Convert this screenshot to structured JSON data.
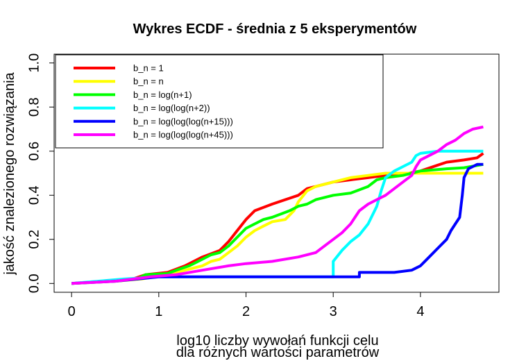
{
  "chart_data": {
    "type": "line",
    "title": "Wykres ECDF - średnia z 5 eksperymentów",
    "xlabel_line1": "log10 liczby wywołań funkcji celu",
    "xlabel_line2": "dla różnych wartości parametrów",
    "ylabel": "jakość znalezionego rozwiązania",
    "xlim": [
      -0.2,
      4.9
    ],
    "ylim": [
      -0.04,
      1.04
    ],
    "xticks": [
      {
        "value": 0,
        "label": "0"
      },
      {
        "value": 1,
        "label": "1"
      },
      {
        "value": 2,
        "label": "2"
      },
      {
        "value": 3,
        "label": "3"
      },
      {
        "value": 4,
        "label": "4"
      }
    ],
    "yticks": [
      {
        "value": 0.0,
        "label": "0.0"
      },
      {
        "value": 0.2,
        "label": "0.2"
      },
      {
        "value": 0.4,
        "label": "0.4"
      },
      {
        "value": 0.6,
        "label": "0.6"
      },
      {
        "value": 0.8,
        "label": "0.8"
      },
      {
        "value": 1.0,
        "label": "1.0"
      }
    ],
    "grid": false,
    "legend_position": "top-left",
    "series": [
      {
        "name": "b_n = 1",
        "color": "#ff0000",
        "points": [
          [
            0,
            0
          ],
          [
            0.4,
            0.01
          ],
          [
            0.7,
            0.02
          ],
          [
            0.85,
            0.04
          ],
          [
            1.1,
            0.05
          ],
          [
            1.3,
            0.08
          ],
          [
            1.5,
            0.12
          ],
          [
            1.7,
            0.15
          ],
          [
            1.8,
            0.19
          ],
          [
            1.9,
            0.24
          ],
          [
            2.0,
            0.29
          ],
          [
            2.1,
            0.33
          ],
          [
            2.3,
            0.36
          ],
          [
            2.45,
            0.38
          ],
          [
            2.6,
            0.4
          ],
          [
            2.7,
            0.43
          ],
          [
            2.8,
            0.44
          ],
          [
            3.0,
            0.46
          ],
          [
            3.2,
            0.47
          ],
          [
            3.4,
            0.48
          ],
          [
            3.6,
            0.49
          ],
          [
            3.8,
            0.495
          ],
          [
            4.0,
            0.51
          ],
          [
            4.3,
            0.55
          ],
          [
            4.5,
            0.56
          ],
          [
            4.65,
            0.57
          ],
          [
            4.72,
            0.59
          ]
        ]
      },
      {
        "name": "b_n = n",
        "color": "#ffff00",
        "points": [
          [
            0,
            0
          ],
          [
            0.5,
            0.01
          ],
          [
            0.8,
            0.02
          ],
          [
            1.1,
            0.04
          ],
          [
            1.3,
            0.06
          ],
          [
            1.5,
            0.08
          ],
          [
            1.6,
            0.1
          ],
          [
            1.7,
            0.11
          ],
          [
            1.8,
            0.14
          ],
          [
            1.9,
            0.17
          ],
          [
            2.0,
            0.21
          ],
          [
            2.1,
            0.24
          ],
          [
            2.2,
            0.26
          ],
          [
            2.3,
            0.28
          ],
          [
            2.45,
            0.29
          ],
          [
            2.55,
            0.33
          ],
          [
            2.6,
            0.37
          ],
          [
            2.7,
            0.42
          ],
          [
            2.8,
            0.44
          ],
          [
            3.0,
            0.46
          ],
          [
            3.2,
            0.48
          ],
          [
            3.4,
            0.49
          ],
          [
            3.6,
            0.5
          ],
          [
            4.0,
            0.5
          ],
          [
            4.72,
            0.5
          ]
        ]
      },
      {
        "name": "b_n = log(n+1)",
        "color": "#00ff00",
        "points": [
          [
            0,
            0
          ],
          [
            0.4,
            0.01
          ],
          [
            0.75,
            0.02
          ],
          [
            0.85,
            0.04
          ],
          [
            1.1,
            0.045
          ],
          [
            1.2,
            0.06
          ],
          [
            1.35,
            0.08
          ],
          [
            1.5,
            0.11
          ],
          [
            1.6,
            0.13
          ],
          [
            1.7,
            0.14
          ],
          [
            1.8,
            0.17
          ],
          [
            1.9,
            0.21
          ],
          [
            2.0,
            0.25
          ],
          [
            2.1,
            0.27
          ],
          [
            2.2,
            0.29
          ],
          [
            2.3,
            0.3
          ],
          [
            2.5,
            0.33
          ],
          [
            2.6,
            0.35
          ],
          [
            2.7,
            0.36
          ],
          [
            2.8,
            0.38
          ],
          [
            3.0,
            0.4
          ],
          [
            3.2,
            0.41
          ],
          [
            3.4,
            0.44
          ],
          [
            3.5,
            0.47
          ],
          [
            3.6,
            0.48
          ],
          [
            3.8,
            0.49
          ],
          [
            4.0,
            0.51
          ],
          [
            4.3,
            0.52
          ],
          [
            4.5,
            0.525
          ],
          [
            4.72,
            0.54
          ]
        ]
      },
      {
        "name": "b_n = log(log(n+2))",
        "color": "#00ffff",
        "points": [
          [
            0,
            0
          ],
          [
            0.3,
            0.01
          ],
          [
            0.6,
            0.02
          ],
          [
            1.0,
            0.03
          ],
          [
            1.5,
            0.03
          ],
          [
            2.0,
            0.03
          ],
          [
            2.5,
            0.03
          ],
          [
            3.0,
            0.03
          ],
          [
            3.0,
            0.1
          ],
          [
            3.1,
            0.15
          ],
          [
            3.2,
            0.19
          ],
          [
            3.3,
            0.22
          ],
          [
            3.4,
            0.27
          ],
          [
            3.5,
            0.35
          ],
          [
            3.55,
            0.42
          ],
          [
            3.6,
            0.48
          ],
          [
            3.7,
            0.51
          ],
          [
            3.8,
            0.53
          ],
          [
            3.9,
            0.55
          ],
          [
            3.95,
            0.58
          ],
          [
            4.0,
            0.59
          ],
          [
            4.2,
            0.6
          ],
          [
            4.72,
            0.6
          ]
        ]
      },
      {
        "name": "b_n = log(log(log(n+15)))",
        "color": "#0000ff",
        "points": [
          [
            0,
            0
          ],
          [
            0.5,
            0.01
          ],
          [
            1.0,
            0.03
          ],
          [
            2.0,
            0.03
          ],
          [
            3.3,
            0.03
          ],
          [
            3.3,
            0.05
          ],
          [
            3.7,
            0.05
          ],
          [
            3.9,
            0.06
          ],
          [
            4.0,
            0.08
          ],
          [
            4.1,
            0.12
          ],
          [
            4.2,
            0.16
          ],
          [
            4.3,
            0.2
          ],
          [
            4.35,
            0.24
          ],
          [
            4.4,
            0.27
          ],
          [
            4.45,
            0.3
          ],
          [
            4.48,
            0.4
          ],
          [
            4.5,
            0.48
          ],
          [
            4.55,
            0.52
          ],
          [
            4.6,
            0.53
          ],
          [
            4.65,
            0.54
          ],
          [
            4.72,
            0.54
          ]
        ]
      },
      {
        "name": "b_n = log(log(log(n+45)))",
        "color": "#ff00ff",
        "points": [
          [
            0,
            0
          ],
          [
            0.5,
            0.01
          ],
          [
            0.9,
            0.03
          ],
          [
            1.2,
            0.04
          ],
          [
            1.5,
            0.06
          ],
          [
            1.8,
            0.08
          ],
          [
            2.0,
            0.09
          ],
          [
            2.3,
            0.1
          ],
          [
            2.6,
            0.12
          ],
          [
            2.8,
            0.14
          ],
          [
            2.9,
            0.17
          ],
          [
            3.0,
            0.2
          ],
          [
            3.1,
            0.23
          ],
          [
            3.2,
            0.27
          ],
          [
            3.3,
            0.33
          ],
          [
            3.4,
            0.36
          ],
          [
            3.5,
            0.38
          ],
          [
            3.6,
            0.4
          ],
          [
            3.7,
            0.43
          ],
          [
            3.8,
            0.46
          ],
          [
            3.9,
            0.49
          ],
          [
            3.95,
            0.53
          ],
          [
            4.0,
            0.56
          ],
          [
            4.1,
            0.58
          ],
          [
            4.2,
            0.6
          ],
          [
            4.3,
            0.63
          ],
          [
            4.4,
            0.65
          ],
          [
            4.5,
            0.68
          ],
          [
            4.6,
            0.7
          ],
          [
            4.72,
            0.71
          ]
        ]
      }
    ]
  }
}
